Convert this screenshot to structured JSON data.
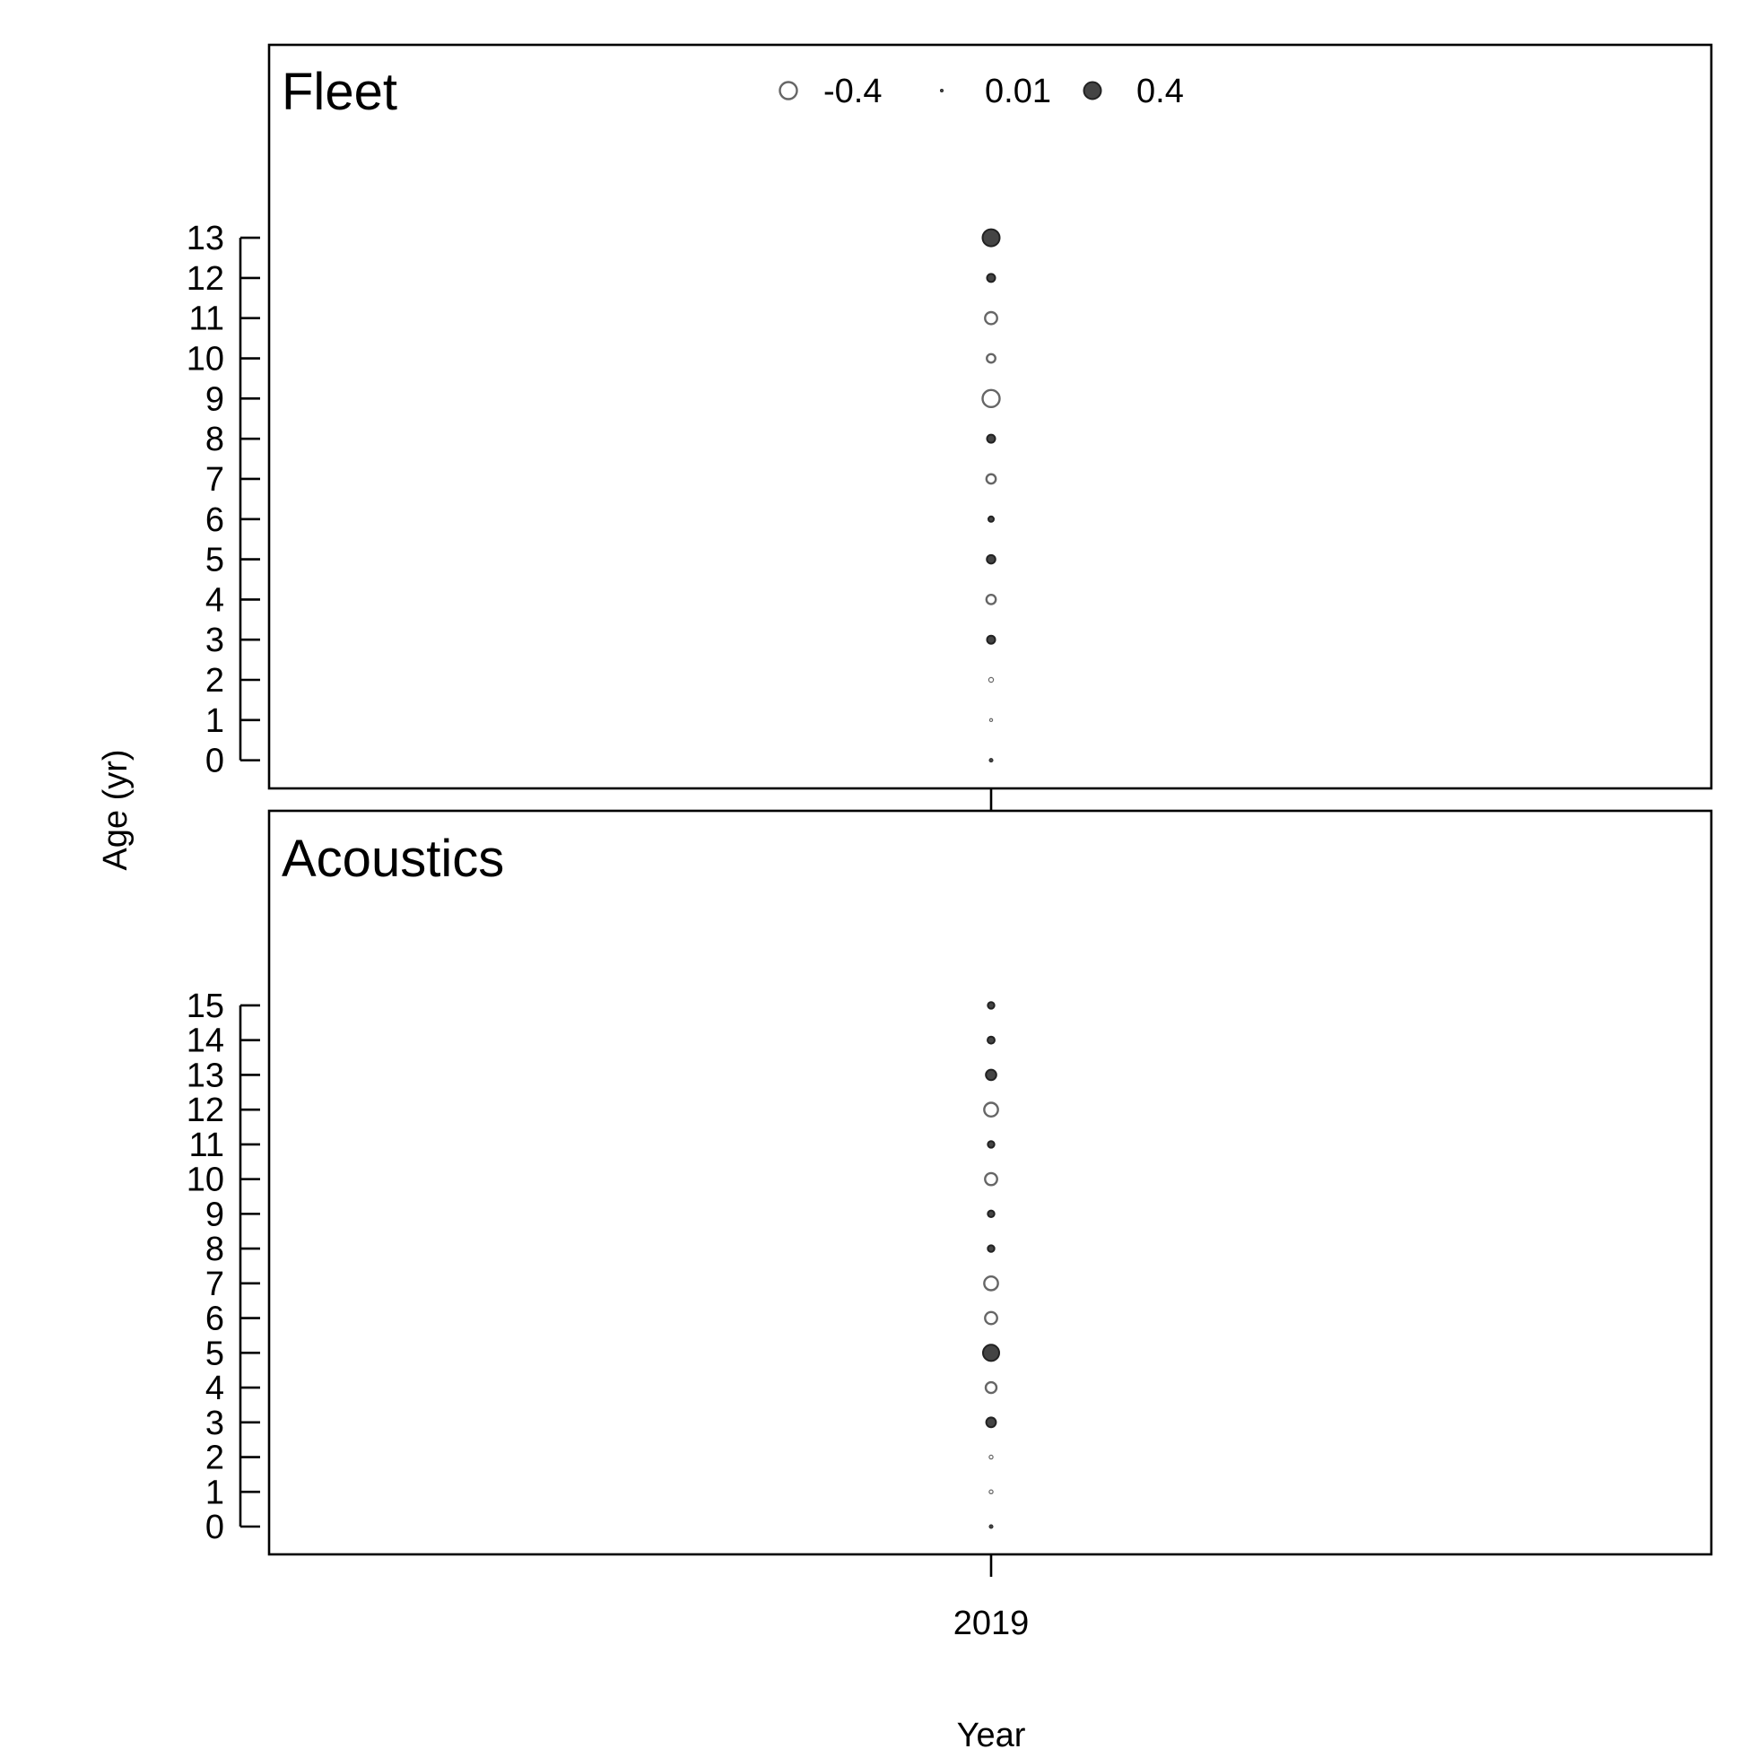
{
  "chart_data": {
    "type": "scatter",
    "xlabel": "Year",
    "ylabel": "Age (yr)",
    "x_ticks": [
      "2019"
    ],
    "legend": {
      "placement": "top-center",
      "entries": [
        {
          "label": "-0.4",
          "value": -0.4
        },
        {
          "label": "0.01",
          "value": 0.01
        },
        {
          "label": "0.4",
          "value": 0.4
        }
      ]
    },
    "colors": {
      "negative_stroke": "#666666",
      "positive_fill": "#444444",
      "frame": "#000000"
    },
    "panels": [
      {
        "title": "Fleet",
        "year": 2019,
        "ylim": [
          -0.7,
          17.8
        ],
        "y_ticks": [
          0,
          1,
          2,
          3,
          4,
          5,
          6,
          7,
          8,
          9,
          10,
          11,
          12,
          13
        ],
        "points": [
          {
            "age": 0,
            "residual": 0.02
          },
          {
            "age": 1,
            "residual": -0.01
          },
          {
            "age": 2,
            "residual": -0.03
          },
          {
            "age": 3,
            "residual": 0.09
          },
          {
            "age": 4,
            "residual": -0.12
          },
          {
            "age": 5,
            "residual": 0.1
          },
          {
            "age": 6,
            "residual": 0.04
          },
          {
            "age": 7,
            "residual": -0.12
          },
          {
            "age": 8,
            "residual": 0.09
          },
          {
            "age": 9,
            "residual": -0.4
          },
          {
            "age": 10,
            "residual": -0.1
          },
          {
            "age": 11,
            "residual": -0.2
          },
          {
            "age": 12,
            "residual": 0.09
          },
          {
            "age": 13,
            "residual": 0.4
          }
        ]
      },
      {
        "title": "Acoustics",
        "year": 2019,
        "ylim": [
          -0.8,
          20.6
        ],
        "y_ticks": [
          0,
          1,
          2,
          3,
          4,
          5,
          6,
          7,
          8,
          9,
          10,
          11,
          12,
          13,
          14,
          15
        ],
        "points": [
          {
            "age": 0,
            "residual": 0.02
          },
          {
            "age": 1,
            "residual": -0.02
          },
          {
            "age": 2,
            "residual": -0.02
          },
          {
            "age": 3,
            "residual": 0.13
          },
          {
            "age": 4,
            "residual": -0.16
          },
          {
            "age": 5,
            "residual": 0.36
          },
          {
            "age": 6,
            "residual": -0.2
          },
          {
            "age": 7,
            "residual": -0.26
          },
          {
            "age": 8,
            "residual": 0.06
          },
          {
            "age": 9,
            "residual": 0.06
          },
          {
            "age": 10,
            "residual": -0.2
          },
          {
            "age": 11,
            "residual": 0.06
          },
          {
            "age": 12,
            "residual": -0.26
          },
          {
            "age": 13,
            "residual": 0.15
          },
          {
            "age": 14,
            "residual": 0.07
          },
          {
            "age": 15,
            "residual": 0.06
          }
        ]
      }
    ]
  }
}
